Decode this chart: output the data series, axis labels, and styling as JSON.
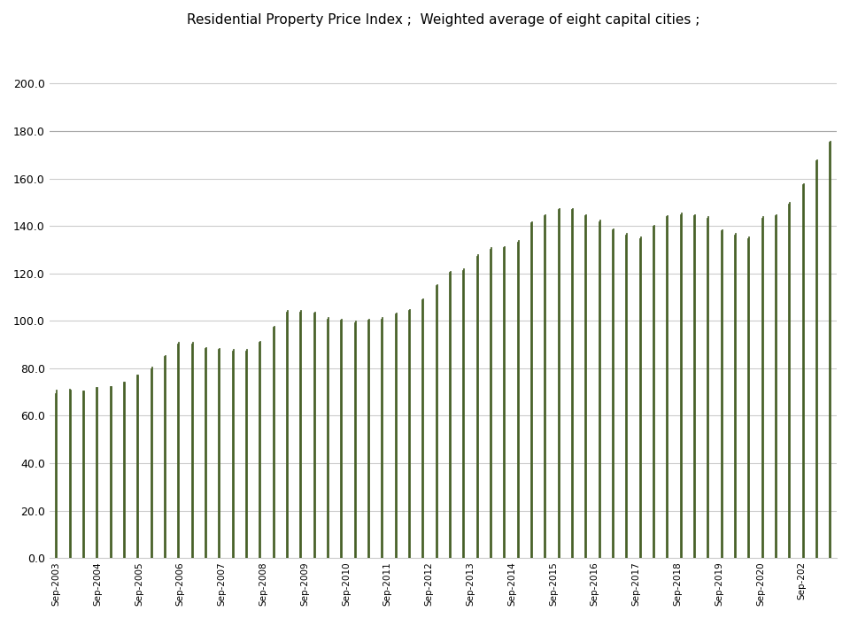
{
  "title": "Residential Property Price Index ;  Weighted average of eight capital cities ;",
  "ylim": [
    0,
    220
  ],
  "yticks": [
    0.0,
    20.0,
    40.0,
    60.0,
    80.0,
    100.0,
    120.0,
    140.0,
    160.0,
    180.0,
    200.0
  ],
  "background_color": "#ffffff",
  "bar_color_fill": "#6b8e23",
  "bar_color_edge": "#3b5323",
  "xtick_labels": [
    "Sep-2003",
    "Sep-2004",
    "Sep-2005",
    "Sep-2006",
    "Sep-2007",
    "Sep-2008",
    "Sep-2009",
    "Sep-2010",
    "Sep-2011",
    "Sep-2012",
    "Sep-2013",
    "Sep-2014",
    "Sep-2015",
    "Sep-2016",
    "Sep-2017",
    "Sep-2018",
    "Sep-2019",
    "Sep-2020",
    "Sep-202"
  ],
  "values_a": [
    69.5,
    71.5,
    70.5,
    72.0,
    72.5,
    74.5,
    77.5,
    80.0,
    85.0,
    90.5,
    90.5,
    88.5,
    88.0,
    87.5,
    87.5,
    91.0,
    97.5,
    104.0,
    104.0,
    103.5,
    101.0,
    100.5,
    99.5,
    100.5,
    101.0,
    103.0,
    104.5,
    109.0,
    115.0,
    120.5,
    121.5,
    127.5,
    130.5,
    131.0,
    133.5,
    141.5,
    144.5,
    147.0,
    147.0,
    144.5,
    142.0,
    138.5,
    136.5,
    135.0,
    140.0,
    144.0,
    145.0,
    144.5,
    143.5,
    138.0,
    136.5,
    135.0,
    143.5,
    144.5,
    149.5,
    157.5,
    167.5,
    175.5
  ],
  "values_b": [
    71.0,
    71.0,
    70.5,
    72.0,
    72.5,
    74.5,
    77.5,
    80.5,
    85.5,
    91.0,
    91.0,
    89.0,
    88.5,
    88.0,
    88.0,
    91.5,
    98.0,
    104.5,
    104.5,
    104.0,
    101.5,
    101.0,
    100.0,
    101.0,
    101.5,
    103.5,
    105.0,
    109.5,
    115.5,
    121.0,
    122.0,
    128.0,
    131.0,
    131.5,
    134.0,
    142.0,
    145.0,
    147.5,
    147.5,
    145.0,
    142.5,
    139.0,
    137.0,
    135.5,
    140.5,
    144.5,
    145.5,
    145.0,
    144.0,
    138.5,
    137.0,
    135.5,
    144.0,
    145.0,
    150.0,
    158.0,
    168.0,
    176.0
  ]
}
